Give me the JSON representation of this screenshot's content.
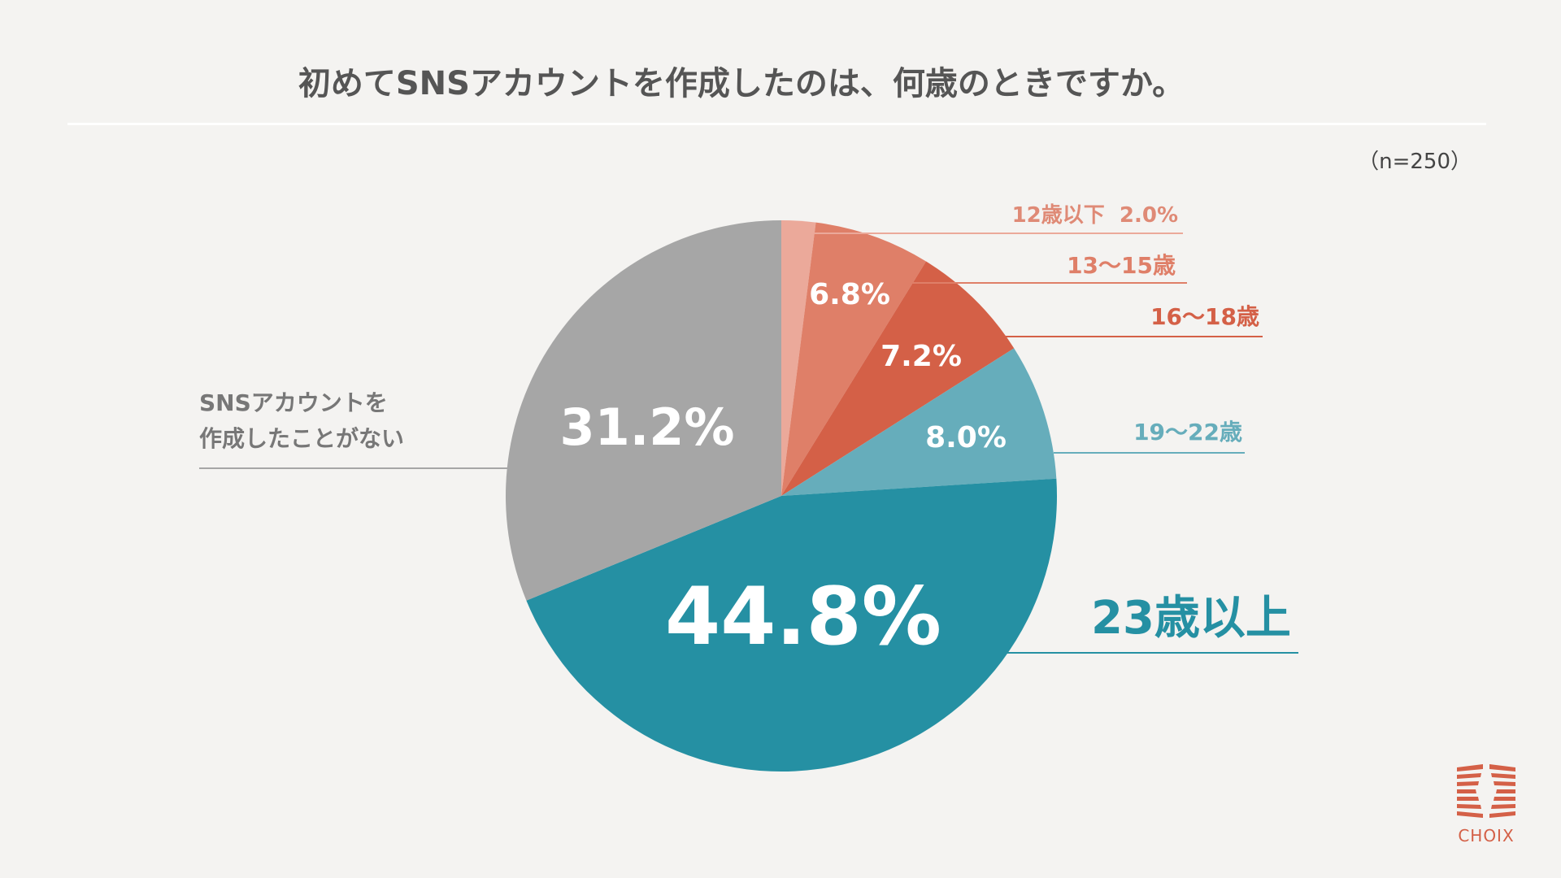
{
  "title": "初めてSNSアカウントを作成したのは、何歳のときですか。",
  "sample_size": "（n=250）",
  "brand": "CHOIX",
  "chart_data": {
    "type": "pie",
    "title": "初めてSNSアカウントを作成したのは、何歳のときですか。",
    "start": "top",
    "direction": "clockwise",
    "slices": [
      {
        "label": "12歳以下",
        "value": 2.0,
        "value_label": "2.0%",
        "color": "#eba99a"
      },
      {
        "label": "13〜15歳",
        "value": 6.8,
        "value_label": "6.8%",
        "color": "#df7f68"
      },
      {
        "label": "16〜18歳",
        "value": 7.2,
        "value_label": "7.2%",
        "color": "#d46047"
      },
      {
        "label": "19〜22歳",
        "value": 8.0,
        "value_label": "8.0%",
        "color": "#66adbb"
      },
      {
        "label": "23歳以上",
        "value": 44.8,
        "value_label": "44.8%",
        "color": "#2590a3"
      },
      {
        "label": "SNSアカウントを作成したことがない",
        "label_lines": [
          "SNSアカウントを",
          "作成したことがない"
        ],
        "value": 31.2,
        "value_label": "31.2%",
        "color": "#a6a6a6"
      }
    ]
  }
}
